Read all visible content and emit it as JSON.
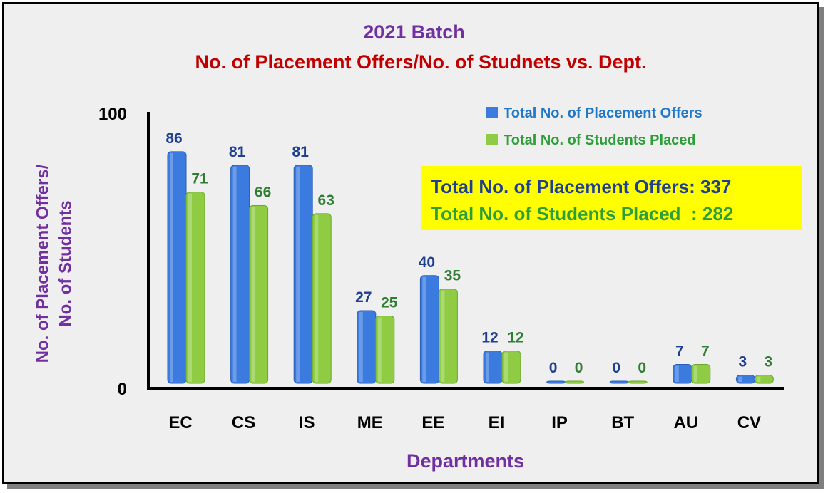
{
  "title": "2021 Batch",
  "subtitle": "No. of Placement Offers/No. of Studnets vs. Dept.",
  "ylabel_line1": "No. of Placement Offers/",
  "ylabel_line2": "No. of Students",
  "xlabel": "Departments",
  "y_ticks": [
    "100",
    "0"
  ],
  "summary": {
    "offers": "Total No. of Placement Offers: 337",
    "placed": "Total No. of Students Placed  : 282"
  },
  "colors": {
    "offers": "#3b7be0",
    "placed": "#8fcc44",
    "offers_label": "#1f3f8f",
    "placed_label": "#2e7d32"
  },
  "chart_data": {
    "type": "bar",
    "categories": [
      "EC",
      "CS",
      "IS",
      "ME",
      "EE",
      "EI",
      "IP",
      "BT",
      "AU",
      "CV"
    ],
    "series": [
      {
        "name": "Total No. of Placement Offers",
        "values": [
          86,
          81,
          81,
          27,
          40,
          12,
          0,
          0,
          7,
          3
        ]
      },
      {
        "name": "Total No. of Students Placed",
        "values": [
          71,
          66,
          63,
          25,
          35,
          12,
          0,
          0,
          7,
          3
        ]
      }
    ],
    "ylim": [
      0,
      100
    ],
    "legend": "top-right",
    "grid": false
  }
}
